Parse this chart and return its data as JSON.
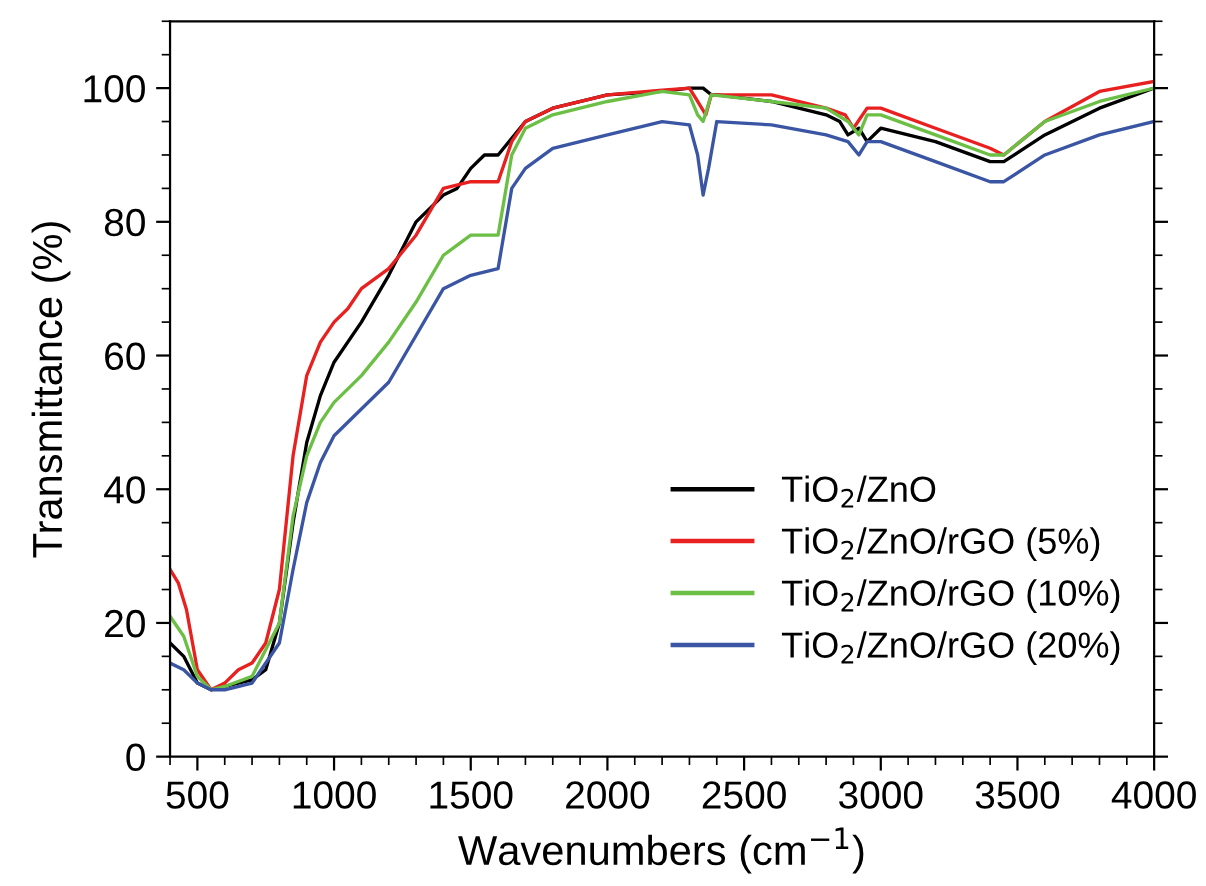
{
  "chart_data": {
    "type": "line",
    "xlabel": "Wavenumbers (cm$^{−1}$)",
    "ylabel": "Transmittance (%)",
    "xlim": [
      400,
      4000
    ],
    "ylim": [
      0,
      110
    ],
    "xticks": [
      500,
      1000,
      1500,
      2000,
      2500,
      3000,
      3500,
      4000
    ],
    "yticks": [
      0,
      20,
      40,
      60,
      80,
      100
    ],
    "grid": false,
    "legend": "bottom right",
    "marker": "none",
    "line_style": "solid",
    "series": [
      {
        "name": "TiO$_{2}$/ZnO",
        "color": "#000000",
        "x": [
          400,
          450,
          500,
          550,
          600,
          700,
          750,
          800,
          850,
          900,
          950,
          1000,
          1100,
          1200,
          1250,
          1300,
          1400,
          1450,
          1500,
          1550,
          1600,
          1700,
          1800,
          2000,
          2200,
          2300,
          2350,
          2380,
          2400,
          2600,
          2800,
          2850,
          2880,
          2920,
          2950,
          3000,
          3200,
          3400,
          3450,
          3600,
          3800,
          4000
        ],
        "values": [
          17,
          15,
          11,
          10,
          10.5,
          11.5,
          13,
          20,
          35,
          47,
          54,
          59,
          65,
          72,
          76,
          80,
          84,
          85,
          88,
          90,
          90,
          95,
          97,
          99,
          99.5,
          100,
          100,
          99,
          99,
          98,
          96,
          95,
          93,
          94,
          92,
          94,
          92,
          89,
          89,
          93,
          97,
          100
        ]
      },
      {
        "name": "TiO$_{2}$/ZnO/rGO (5%)",
        "color": "#e82020",
        "x": [
          400,
          430,
          460,
          500,
          550,
          600,
          650,
          700,
          750,
          800,
          850,
          900,
          950,
          1000,
          1050,
          1100,
          1200,
          1300,
          1400,
          1500,
          1600,
          1650,
          1700,
          1800,
          2000,
          2200,
          2300,
          2330,
          2360,
          2380,
          2600,
          2800,
          2870,
          2900,
          2950,
          3000,
          3200,
          3400,
          3450,
          3600,
          3800,
          4000
        ],
        "values": [
          28,
          26,
          22,
          13,
          10,
          11,
          13,
          14,
          17,
          25,
          45,
          57,
          62,
          65,
          67,
          70,
          73,
          78,
          85,
          86,
          86,
          92,
          95,
          97,
          99,
          99.7,
          100,
          98,
          96,
          99,
          99,
          97,
          96,
          94,
          97,
          97,
          94,
          91,
          90,
          95,
          99.5,
          101
        ]
      },
      {
        "name": "TiO$_{2}$/ZnO/rGO (10%)",
        "color": "#6cbf45",
        "x": [
          400,
          450,
          500,
          550,
          600,
          700,
          800,
          850,
          900,
          950,
          1000,
          1100,
          1200,
          1300,
          1400,
          1500,
          1600,
          1650,
          1700,
          1800,
          2000,
          2200,
          2300,
          2330,
          2350,
          2380,
          2600,
          2800,
          2880,
          2920,
          2950,
          3000,
          3200,
          3400,
          3450,
          3600,
          3800,
          4000
        ],
        "values": [
          21,
          18,
          12,
          10,
          10.5,
          12,
          20,
          36,
          45,
          50,
          53,
          57,
          62,
          68,
          75,
          78,
          78,
          90,
          94,
          96,
          98,
          99.5,
          99,
          96,
          95,
          99,
          98,
          97,
          95,
          93,
          96,
          96,
          93,
          90,
          90,
          95,
          98,
          100
        ]
      },
      {
        "name": "TiO$_{2}$/ZnO/rGO (20%)",
        "color": "#3a55a4",
        "x": [
          400,
          450,
          500,
          550,
          600,
          700,
          800,
          850,
          900,
          950,
          1000,
          1100,
          1200,
          1300,
          1400,
          1500,
          1600,
          1650,
          1700,
          1800,
          2000,
          2200,
          2300,
          2330,
          2350,
          2370,
          2400,
          2600,
          2800,
          2880,
          2920,
          2950,
          3000,
          3200,
          3400,
          3450,
          3600,
          3800,
          4000
        ],
        "values": [
          14,
          13,
          11,
          10,
          10,
          11,
          17,
          28,
          38,
          44,
          48,
          52,
          56,
          63,
          70,
          72,
          73,
          85,
          88,
          91,
          93,
          95,
          94.5,
          90,
          84,
          88,
          95,
          94.5,
          93,
          92,
          90,
          92,
          92,
          89,
          86,
          86,
          90,
          93,
          95
        ]
      }
    ]
  }
}
